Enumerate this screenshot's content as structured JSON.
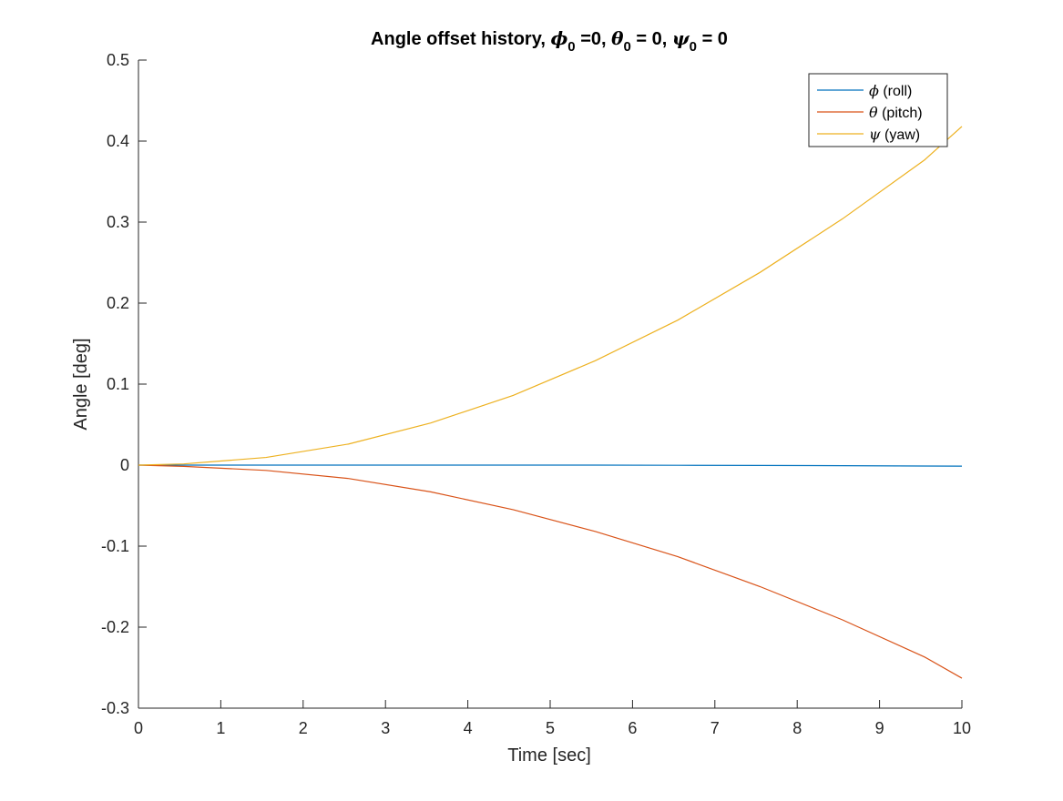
{
  "chart_data": {
    "type": "line",
    "title": {
      "prefix": "Angle offset history, ",
      "parts": [
        {
          "symbol": "ϕ",
          "sub": "0",
          "suffix": " =0, "
        },
        {
          "symbol": "θ",
          "sub": "0",
          "suffix": " = 0, "
        },
        {
          "symbol": "ψ",
          "sub": "0",
          "suffix": " = 0"
        }
      ]
    },
    "xlabel": "Time [sec]",
    "ylabel": "Angle [deg]",
    "xlim": [
      0,
      10
    ],
    "ylim": [
      -0.3,
      0.5
    ],
    "xticks": [
      0,
      1,
      2,
      3,
      4,
      5,
      6,
      7,
      8,
      9,
      10
    ],
    "yticks": [
      -0.3,
      -0.2,
      -0.1,
      0,
      0.1,
      0.2,
      0.3,
      0.4,
      0.5
    ],
    "ytick_labels": [
      "-0.3",
      "-0.2",
      "-0.1",
      "0",
      "0.1",
      "0.2",
      "0.3",
      "0.4",
      "0.5"
    ],
    "grid": false,
    "legend_position": "top-right",
    "x": [
      0,
      0.55,
      1.55,
      2.55,
      3.55,
      4.55,
      5.55,
      6.55,
      7.55,
      8.55,
      9.55,
      10
    ],
    "series": [
      {
        "symbol": "ϕ",
        "label": " (roll)",
        "color": "#0072BD",
        "values": [
          0,
          0,
          0,
          0,
          0,
          0,
          0,
          -0.0002,
          -0.0004,
          -0.0007,
          -0.0011,
          -0.0013
        ]
      },
      {
        "symbol": "θ",
        "label": " (pitch)",
        "color": "#D95319",
        "values": [
          0,
          -0.0015,
          -0.0065,
          -0.0165,
          -0.033,
          -0.055,
          -0.082,
          -0.113,
          -0.15,
          -0.191,
          -0.237,
          -0.263
        ]
      },
      {
        "symbol": "ψ",
        "label": " (yaw)",
        "color": "#EDB120",
        "values": [
          0,
          0.0015,
          0.0095,
          0.026,
          0.052,
          0.086,
          0.129,
          0.179,
          0.238,
          0.304,
          0.377,
          0.418
        ]
      }
    ]
  }
}
